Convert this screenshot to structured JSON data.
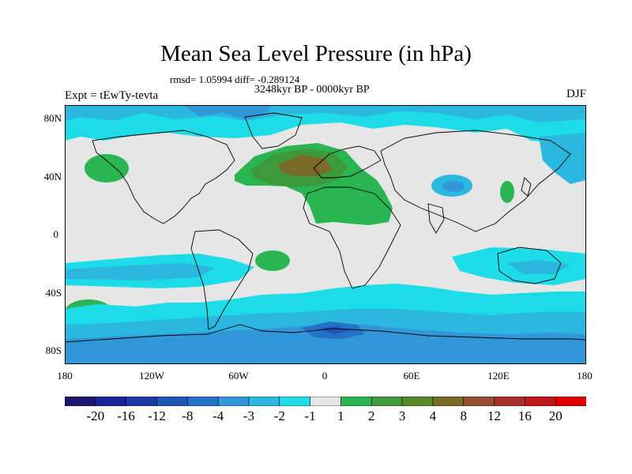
{
  "title": "Mean Sea Level Pressure (in hPa)",
  "stats": "rmsd= 1.05994 diff= -0.289124",
  "period": "3248kyr BP - 0000kyr BP",
  "experiment": "Expt = tEwTy-tevta",
  "season": "DJF",
  "lat_labels": [
    "80N",
    "40N",
    "0",
    "40S",
    "80S"
  ],
  "lon_labels": [
    "180",
    "120W",
    "60W",
    "0",
    "60E",
    "120E",
    "180"
  ],
  "colorbar": {
    "levels": [
      "-20",
      "-16",
      "-12",
      "-8",
      "-4",
      "-3",
      "-2",
      "-1",
      "1",
      "2",
      "3",
      "4",
      "8",
      "12",
      "16",
      "20"
    ],
    "colors": [
      "#1c1670",
      "#1a2498",
      "#1c3aa8",
      "#1f54b8",
      "#2472c8",
      "#3197d8",
      "#2ab8e0",
      "#1ddce8",
      "#e6e6e6",
      "#2ab452",
      "#3d9a3a",
      "#5a8a2a",
      "#7a6a2a",
      "#945030",
      "#a8302a",
      "#c01818",
      "#e00000"
    ]
  },
  "map_colors": {
    "neutral": "#e6e6e6",
    "light_cyan": "#1ddce8",
    "cyan": "#2ab8e0",
    "blue": "#3197d8",
    "mid_blue": "#2472c8",
    "deep_blue": "#1f54b8",
    "green": "#2ab452",
    "olive": "#3d9a3a",
    "brown": "#7a6a2a"
  }
}
